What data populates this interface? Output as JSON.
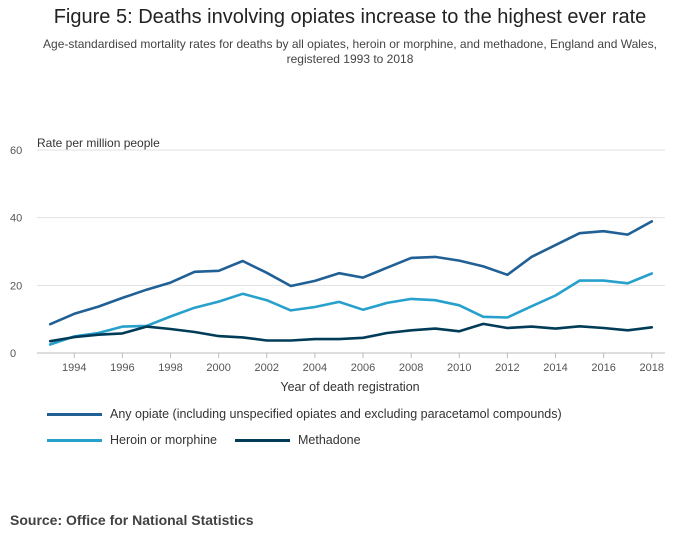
{
  "header": {
    "title": "Figure 5: Deaths involving opiates increase to the highest ever rate",
    "subtitle": "Age-standardised mortality rates for deaths by all opiates, heroin or morphine, and methadone, England and Wales, registered 1993 to 2018"
  },
  "footer": {
    "source": "Source: Office for National Statistics"
  },
  "chart_data": {
    "type": "line",
    "title": "Figure 5: Deaths involving opiates increase to the highest ever rate",
    "subtitle": "Age-standardised mortality rates for deaths by all opiates, heroin or morphine, and methadone, England and Wales, registered 1993 to 2018",
    "xlabel": "Year of death registration",
    "ylabel": "Rate per million people",
    "ylim": [
      0,
      60
    ],
    "yticks": [
      "0",
      "20",
      "40",
      "60"
    ],
    "xticks": [
      "1994",
      "1996",
      "1998",
      "2000",
      "2002",
      "2004",
      "2006",
      "2008",
      "2010",
      "2012",
      "2014",
      "2016",
      "2018"
    ],
    "grid": "horizontal",
    "legend_position": "bottom",
    "x": [
      1993,
      1994,
      1995,
      1996,
      1997,
      1998,
      1999,
      2000,
      2001,
      2002,
      2003,
      2004,
      2005,
      2006,
      2007,
      2008,
      2009,
      2010,
      2011,
      2012,
      2013,
      2014,
      2015,
      2016,
      2017,
      2018
    ],
    "series": [
      {
        "name": "Any opiate (including unspecified opiates and excluding paracetamol compounds)",
        "color": "#206095",
        "values": [
          8.5,
          11.6,
          13.7,
          16.3,
          18.7,
          20.8,
          24.0,
          24.3,
          27.2,
          23.7,
          19.8,
          21.3,
          23.6,
          22.3,
          25.2,
          28.1,
          28.4,
          27.3,
          25.6,
          23.1,
          28.4,
          31.9,
          35.4,
          36.0,
          35.0,
          38.9
        ]
      },
      {
        "name": "Heroin or morphine",
        "color": "#27a0cc",
        "values": [
          2.5,
          4.9,
          5.9,
          7.8,
          8.0,
          10.8,
          13.4,
          15.2,
          17.5,
          15.6,
          12.6,
          13.6,
          15.1,
          12.8,
          14.8,
          16.0,
          15.6,
          14.1,
          10.7,
          10.5,
          13.8,
          17.0,
          21.4,
          21.4,
          20.6,
          23.5
        ]
      },
      {
        "name": "Methadone",
        "color": "#003c57",
        "values": [
          3.5,
          4.7,
          5.4,
          5.8,
          7.8,
          7.1,
          6.2,
          5.0,
          4.6,
          3.7,
          3.7,
          4.1,
          4.1,
          4.5,
          5.9,
          6.7,
          7.2,
          6.4,
          8.6,
          7.4,
          7.8,
          7.2,
          7.9,
          7.4,
          6.7,
          7.6
        ]
      }
    ]
  }
}
